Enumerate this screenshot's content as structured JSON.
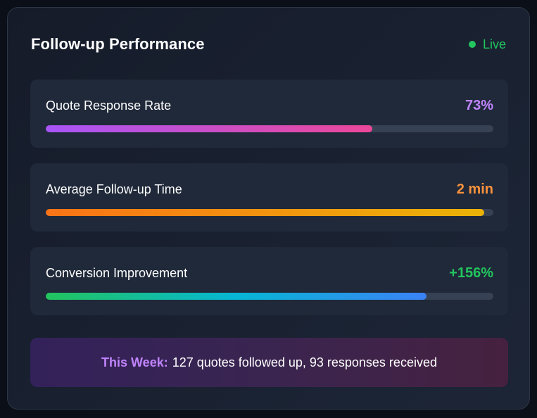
{
  "header": {
    "title": "Follow-up Performance",
    "status_label": "Live",
    "status_color": "#22c55e"
  },
  "metrics": [
    {
      "label": "Quote Response Rate",
      "value": "73%",
      "value_color": "#c084fc",
      "progress_percent": 73,
      "gradient": [
        "#a855f7",
        "#ec4899"
      ]
    },
    {
      "label": "Average Follow-up Time",
      "value": "2 min",
      "value_color": "#fb923c",
      "progress_percent": 98,
      "gradient": [
        "#f97316",
        "#eab308"
      ]
    },
    {
      "label": "Conversion Improvement",
      "value": "+156%",
      "value_color": "#22c55e",
      "progress_percent": 85,
      "gradient": [
        "#22c55e",
        "#06b6d4",
        "#3b82f6"
      ]
    }
  ],
  "summary": {
    "key": "This Week:",
    "text": "127 quotes followed up, 93 responses received"
  }
}
